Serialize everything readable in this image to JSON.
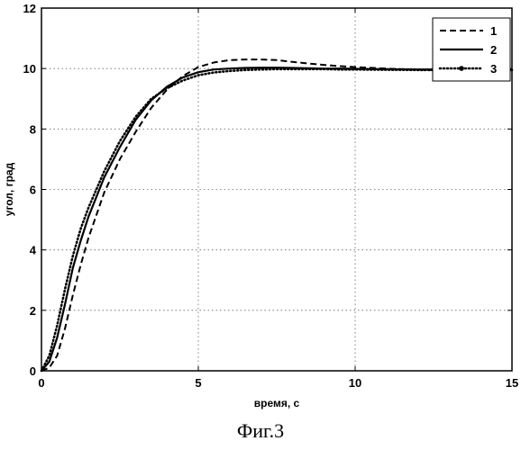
{
  "chart_data": {
    "type": "line",
    "title": "",
    "xlabel": "время, с",
    "ylabel": "угол, град",
    "xlim": [
      0,
      15
    ],
    "ylim": [
      0,
      12
    ],
    "xticks": [
      0,
      5,
      10,
      15
    ],
    "yticks": [
      0,
      2,
      4,
      6,
      8,
      10,
      12
    ],
    "grid": true,
    "legend": "top-right",
    "series": [
      {
        "name": "1",
        "style": "dashed",
        "x": [
          0,
          0.25,
          0.5,
          0.75,
          1,
          1.25,
          1.5,
          2,
          2.5,
          3,
          3.5,
          4,
          4.5,
          5,
          5.5,
          6,
          6.5,
          7,
          7.5,
          8,
          8.5,
          9,
          9.5,
          10,
          11,
          12,
          13,
          14,
          15
        ],
        "y": [
          0,
          0.1,
          0.5,
          1.4,
          2.5,
          3.5,
          4.4,
          5.9,
          7.0,
          7.9,
          8.7,
          9.3,
          9.75,
          10.05,
          10.2,
          10.28,
          10.3,
          10.3,
          10.28,
          10.22,
          10.17,
          10.12,
          10.08,
          10.05,
          10.0,
          9.96,
          9.94,
          9.94,
          9.95
        ]
      },
      {
        "name": "2",
        "style": "solid",
        "x": [
          0,
          0.25,
          0.5,
          0.75,
          1,
          1.25,
          1.5,
          2,
          2.5,
          3,
          3.5,
          4,
          4.5,
          5,
          5.5,
          6,
          6.5,
          7,
          7.5,
          8,
          8.5,
          9,
          9.5,
          10,
          11,
          12,
          13,
          14,
          15
        ],
        "y": [
          0,
          0.3,
          1.1,
          2.2,
          3.4,
          4.3,
          5.1,
          6.4,
          7.4,
          8.3,
          8.95,
          9.4,
          9.7,
          9.88,
          9.97,
          10.0,
          10.02,
          10.03,
          10.03,
          10.02,
          10.01,
          10.0,
          10.0,
          9.99,
          9.98,
          9.97,
          9.97,
          9.97,
          9.97
        ]
      },
      {
        "name": "3",
        "style": "dotted",
        "x": [
          0,
          0.25,
          0.5,
          0.75,
          1,
          1.25,
          1.5,
          2,
          2.5,
          3,
          3.5,
          4,
          4.5,
          5,
          5.5,
          6,
          6.5,
          7,
          7.5,
          8,
          8.5,
          9,
          9.5,
          10,
          11,
          12,
          13,
          14,
          15
        ],
        "y": [
          0,
          0.5,
          1.5,
          2.7,
          3.8,
          4.7,
          5.4,
          6.6,
          7.6,
          8.4,
          9.0,
          9.35,
          9.6,
          9.78,
          9.87,
          9.92,
          9.95,
          9.97,
          9.98,
          9.98,
          9.98,
          9.98,
          9.97,
          9.97,
          9.96,
          9.95,
          9.95,
          9.95,
          9.95
        ]
      }
    ]
  },
  "caption": "Фиг.3"
}
